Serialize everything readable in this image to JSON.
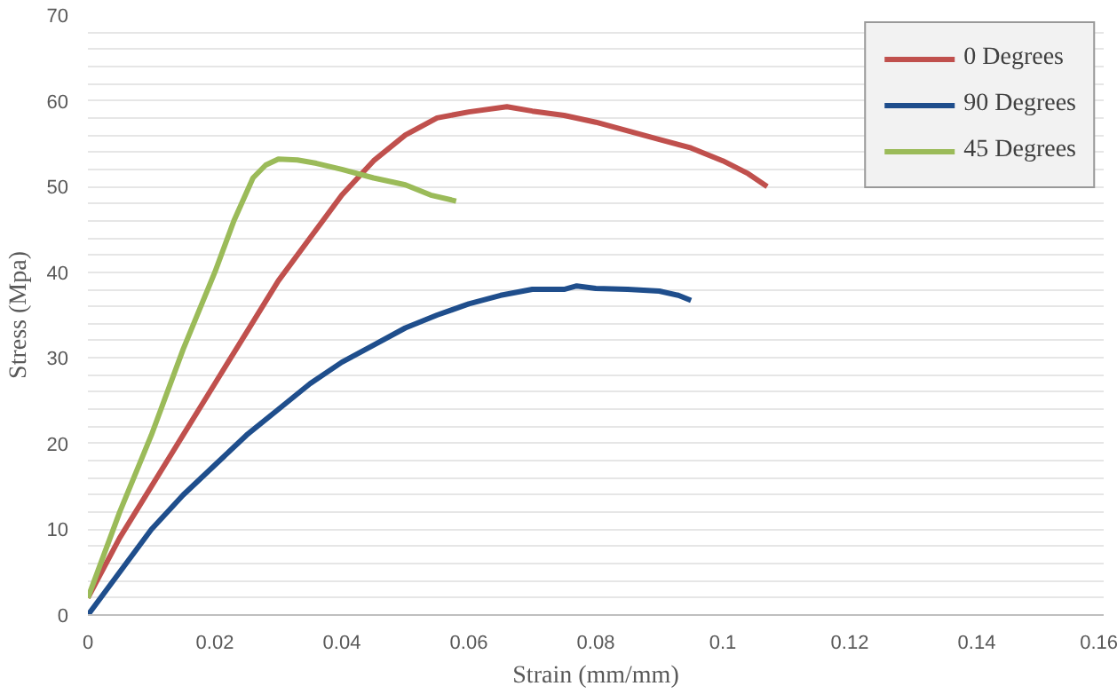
{
  "chart_data": {
    "type": "line",
    "xlabel": "Strain (mm/mm)",
    "ylabel": "Stress (Mpa)",
    "xlim": [
      0,
      0.16
    ],
    "xticks": [
      0,
      0.02,
      0.04,
      0.06,
      0.08,
      0.1,
      0.12,
      0.14,
      0.16
    ],
    "ylim": [
      0,
      70
    ],
    "yticks": [
      0,
      {
        "value": 2,
        "label": null
      },
      {
        "value": 4,
        "label": null
      },
      {
        "value": 6,
        "label": null
      },
      {
        "value": 8,
        "label": null
      },
      10,
      {
        "value": 12,
        "label": null
      },
      {
        "value": 14,
        "label": null
      },
      {
        "value": 16,
        "label": null
      },
      {
        "value": 18,
        "label": null
      },
      20,
      {
        "value": 22,
        "label": null
      },
      {
        "value": 24,
        "label": null
      },
      {
        "value": 26,
        "label": null
      },
      {
        "value": 28,
        "label": null
      },
      30,
      {
        "value": 32,
        "label": null
      },
      {
        "value": 34,
        "label": null
      },
      {
        "value": 36,
        "label": null
      },
      {
        "value": 38,
        "label": null
      },
      40,
      {
        "value": 42,
        "label": null
      },
      {
        "value": 44,
        "label": null
      },
      {
        "value": 46,
        "label": null
      },
      {
        "value": 48,
        "label": null
      },
      50,
      {
        "value": 52,
        "label": null
      },
      {
        "value": 54,
        "label": null
      },
      {
        "value": 56,
        "label": null
      },
      {
        "value": 58,
        "label": null
      },
      60,
      {
        "value": 62,
        "label": null
      },
      {
        "value": 64,
        "label": null
      },
      {
        "value": 66,
        "label": null
      },
      {
        "value": 68,
        "label": null
      },
      70
    ],
    "grid": "y",
    "legend": "top right",
    "marker": "none",
    "line_style": "solid",
    "series": [
      {
        "name": "0 Degrees",
        "color": "#c0504d",
        "x": [
          0,
          0.005,
          0.01,
          0.015,
          0.02,
          0.025,
          0.03,
          0.035,
          0.04,
          0.045,
          0.05,
          0.055,
          0.06,
          0.066,
          0.07,
          0.075,
          0.08,
          0.085,
          0.09,
          0.095,
          0.1,
          0.104,
          0.107
        ],
        "values": [
          2,
          9,
          15,
          21,
          27,
          33,
          39,
          44,
          49,
          53,
          56,
          58,
          58.7,
          59.3,
          58.8,
          58.3,
          57.5,
          56.5,
          55.5,
          54.5,
          53,
          51.5,
          50
        ]
      },
      {
        "name": "90 Degrees",
        "color": "#1f4e8c",
        "x": [
          0,
          0.005,
          0.01,
          0.015,
          0.02,
          0.025,
          0.03,
          0.035,
          0.04,
          0.045,
          0.05,
          0.055,
          0.06,
          0.065,
          0.07,
          0.075,
          0.077,
          0.08,
          0.085,
          0.09,
          0.093,
          0.095
        ],
        "values": [
          0,
          5,
          10,
          14,
          17.5,
          21,
          24,
          27,
          29.5,
          31.5,
          33.5,
          35,
          36.3,
          37.3,
          38,
          38,
          38.4,
          38.1,
          38,
          37.8,
          37.3,
          36.7
        ]
      },
      {
        "name": "45 Degrees",
        "color": "#9bbb59",
        "x": [
          0,
          0.005,
          0.01,
          0.015,
          0.02,
          0.023,
          0.026,
          0.028,
          0.03,
          0.033,
          0.036,
          0.04,
          0.045,
          0.05,
          0.054,
          0.058
        ],
        "values": [
          2,
          12,
          21,
          31,
          40,
          46,
          51,
          52.5,
          53.2,
          53.1,
          52.7,
          52,
          51,
          50.2,
          49,
          48.3
        ]
      }
    ]
  }
}
